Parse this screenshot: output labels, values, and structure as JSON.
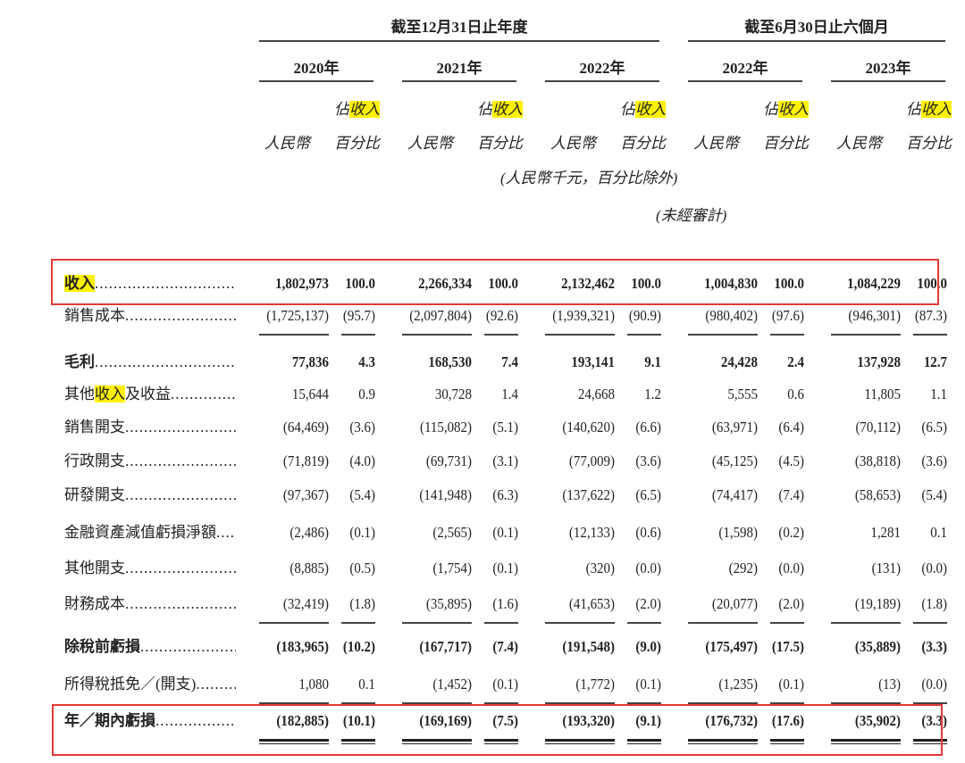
{
  "header": {
    "period_year": "截至12月31日止年度",
    "period_half": "截至6月30日止六個月",
    "years": [
      "2020年",
      "2021年",
      "2022年",
      "2022年",
      "2023年"
    ],
    "pct_label_pre": "佔",
    "pct_label_hl": "收入",
    "pct_label_sub": "百分比",
    "rmb_label": "人民幣",
    "unit_note": "(人民幣千元，百分比除外)",
    "unaudited_note": "(未經審計)"
  },
  "highlight_color": "#fff200",
  "box_color": "#e53935",
  "rows": [
    {
      "label": "收入",
      "hl": "收入",
      "bold": true,
      "rule": "none",
      "values": [
        "1,802,973",
        "100.0",
        "2,266,334",
        "100.0",
        "2,132,462",
        "100.0",
        "1,004,830",
        "100.0",
        "1,084,229",
        "100.0"
      ]
    },
    {
      "label": "銷售成本",
      "bold": false,
      "rule": "single",
      "values": [
        "(1,725,137)",
        "(95.7)",
        "(2,097,804)",
        "(92.6)",
        "(1,939,321)",
        "(90.9)",
        "(980,402)",
        "(97.6)",
        "(946,301)",
        "(87.3)"
      ]
    },
    {
      "label": "毛利",
      "bold": true,
      "rule": "none",
      "values": [
        "77,836",
        "4.3",
        "168,530",
        "7.4",
        "193,141",
        "9.1",
        "24,428",
        "2.4",
        "137,928",
        "12.7"
      ]
    },
    {
      "label": "其他收入及收益",
      "hl": "收入",
      "bold": false,
      "rule": "none",
      "values": [
        "15,644",
        "0.9",
        "30,728",
        "1.4",
        "24,668",
        "1.2",
        "5,555",
        "0.6",
        "11,805",
        "1.1"
      ]
    },
    {
      "label": "銷售開支",
      "bold": false,
      "rule": "none",
      "values": [
        "(64,469)",
        "(3.6)",
        "(115,082)",
        "(5.1)",
        "(140,620)",
        "(6.6)",
        "(63,971)",
        "(6.4)",
        "(70,112)",
        "(6.5)"
      ]
    },
    {
      "label": "行政開支",
      "bold": false,
      "rule": "none",
      "values": [
        "(71,819)",
        "(4.0)",
        "(69,731)",
        "(3.1)",
        "(77,009)",
        "(3.6)",
        "(45,125)",
        "(4.5)",
        "(38,818)",
        "(3.6)"
      ]
    },
    {
      "label": "研發開支",
      "bold": false,
      "rule": "none",
      "values": [
        "(97,367)",
        "(5.4)",
        "(141,948)",
        "(6.3)",
        "(137,622)",
        "(6.5)",
        "(74,417)",
        "(7.4)",
        "(58,653)",
        "(5.4)"
      ]
    },
    {
      "label": "金融資產減值虧損淨額",
      "bold": false,
      "rule": "none",
      "values": [
        "(2,486)",
        "(0.1)",
        "(2,565)",
        "(0.1)",
        "(12,133)",
        "(0.6)",
        "(1,598)",
        "(0.2)",
        "1,281",
        "0.1"
      ]
    },
    {
      "label": "其他開支",
      "bold": false,
      "rule": "none",
      "values": [
        "(8,885)",
        "(0.5)",
        "(1,754)",
        "(0.1)",
        "(320)",
        "(0.0)",
        "(292)",
        "(0.0)",
        "(131)",
        "(0.0)"
      ]
    },
    {
      "label": "財務成本",
      "bold": false,
      "rule": "single",
      "values": [
        "(32,419)",
        "(1.8)",
        "(35,895)",
        "(1.6)",
        "(41,653)",
        "(2.0)",
        "(20,077)",
        "(2.0)",
        "(19,189)",
        "(1.8)"
      ]
    },
    {
      "label": "除稅前虧損",
      "bold": true,
      "rule": "none",
      "values": [
        "(183,965)",
        "(10.2)",
        "(167,717)",
        "(7.4)",
        "(191,548)",
        "(9.0)",
        "(175,497)",
        "(17.5)",
        "(35,889)",
        "(3.3)"
      ]
    },
    {
      "label": "所得稅抵免／(開支)",
      "bold": false,
      "rule": "single",
      "values": [
        "1,080",
        "0.1",
        "(1,452)",
        "(0.1)",
        "(1,772)",
        "(0.1)",
        "(1,235)",
        "(0.1)",
        "(13)",
        "(0.0)"
      ]
    },
    {
      "label": "年／期內虧損",
      "bold": true,
      "rule": "double",
      "values": [
        "(182,885)",
        "(10.1)",
        "(169,169)",
        "(7.5)",
        "(193,320)",
        "(9.1)",
        "(176,732)",
        "(17.6)",
        "(35,902)",
        "(3.3)"
      ]
    }
  ]
}
